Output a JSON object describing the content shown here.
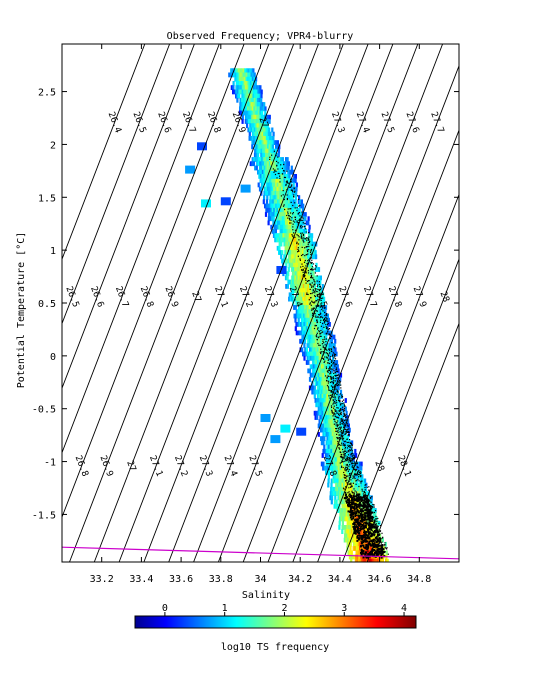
{
  "chart_data": {
    "type": "heatmap",
    "title": "Observed Frequency; VPR4-blurry",
    "xlabel": "Salinity",
    "ylabel": "Potential Temperature [°C]",
    "xlim": [
      33.0,
      35.0
    ],
    "ylim": [
      -1.95,
      2.95
    ],
    "xticks": [
      33.2,
      33.4,
      33.6,
      33.8,
      34.0,
      34.2,
      34.4,
      34.6,
      34.8
    ],
    "yticks": [
      -1.5,
      -1,
      -0.5,
      0,
      0.5,
      1,
      1.5,
      2,
      2.5
    ],
    "xtick_labels": [
      "33.2",
      "33.4",
      "33.6",
      "33.8",
      "34",
      "34.2",
      "34.4",
      "34.6",
      "34.8"
    ],
    "ytick_labels": [
      "-1.5",
      "-1",
      "-0.5",
      "0",
      "0.5",
      "1",
      "1.5",
      "2",
      "2.5"
    ],
    "isopycnals": {
      "values": [
        26.4,
        26.5,
        26.6,
        26.7,
        26.8,
        26.9,
        27.0,
        27.1,
        27.2,
        27.3,
        27.4,
        27.5,
        27.6,
        27.7,
        27.8,
        27.9,
        28.0,
        28.1
      ],
      "labels_top": [
        "26.4",
        "26.5",
        "26.6",
        "26.7",
        "26.8",
        "26.9",
        "27",
        "27.3",
        "27.4",
        "27.5",
        "27.6",
        "27.7",
        "27.8",
        "27.9"
      ],
      "labels_mid": [
        "26.5",
        "26.6",
        "26.7",
        "26.8",
        "26.9",
        "27",
        "27.1",
        "27.2",
        "27.3",
        "27.4",
        "27.5",
        "27.6",
        "27.7",
        "27.8",
        "27.9",
        "28"
      ],
      "labels_bottom": [
        "26.6",
        "26.7",
        "26.8",
        "26.9",
        "27",
        "27.1",
        "27.2",
        "27.3",
        "27.4",
        "27.5",
        "27.8",
        "27.9",
        "28",
        "28.1"
      ]
    },
    "freezing_line": {
      "color": "#cc00cc",
      "points": [
        [
          33.0,
          -1.81
        ],
        [
          35.0,
          -1.92
        ]
      ]
    },
    "colorbar": {
      "label": "log10 TS frequency",
      "range": [
        -0.5,
        4.2
      ],
      "ticks": [
        "0",
        "1",
        "2",
        "3",
        "4"
      ],
      "colormap": "jet"
    },
    "distribution": {
      "description_points": [
        {
          "s": 33.85,
          "t": 2.65,
          "f": 1.2
        },
        {
          "s": 34.05,
          "t": 2.1,
          "f": 1.6
        },
        {
          "s": 34.15,
          "t": 1.8,
          "f": 2.0
        },
        {
          "s": 34.2,
          "t": 1.2,
          "f": 2.2
        },
        {
          "s": 34.28,
          "t": 0.8,
          "f": 2.6
        },
        {
          "s": 34.32,
          "t": 0.2,
          "f": 2.5
        },
        {
          "s": 34.38,
          "t": -0.5,
          "f": 2.6
        },
        {
          "s": 34.42,
          "t": -1.2,
          "f": 3.2
        },
        {
          "s": 34.5,
          "t": -1.7,
          "f": 3.8
        }
      ]
    }
  }
}
